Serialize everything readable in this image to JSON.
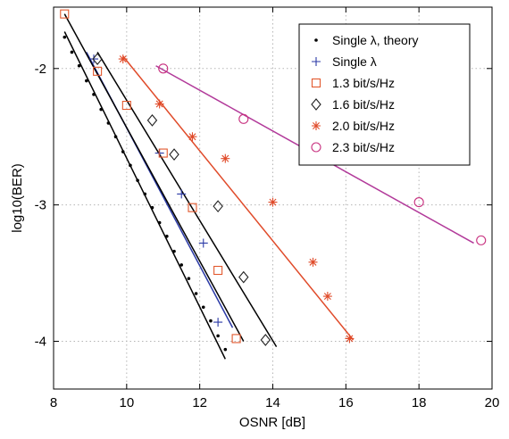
{
  "chart_data": {
    "type": "scatter",
    "title": "",
    "xlabel": "OSNR [dB]",
    "ylabel": "log10(BER)",
    "xlim": [
      8,
      20
    ],
    "ylim": [
      -4.35,
      -1.55
    ],
    "xticks": [
      8,
      10,
      12,
      14,
      16,
      18,
      20
    ],
    "yticks": [
      -2,
      -3,
      -4
    ],
    "xtick_labels": [
      "8",
      "10",
      "12",
      "14",
      "16",
      "18",
      "20"
    ],
    "ytick_labels": [
      "-2",
      "-3",
      "-4"
    ],
    "grid": true,
    "legend_position": "top-right",
    "series": [
      {
        "name": "Single λ, theory",
        "marker": "dot",
        "color": "#000000",
        "line_color": "#000000",
        "points": [
          [
            8.3,
            -1.77
          ],
          [
            8.5,
            -1.88
          ],
          [
            8.7,
            -1.98
          ],
          [
            8.9,
            -2.09
          ],
          [
            9.1,
            -2.19
          ],
          [
            9.3,
            -2.3
          ],
          [
            9.5,
            -2.4
          ],
          [
            9.7,
            -2.5
          ],
          [
            9.9,
            -2.61
          ],
          [
            10.1,
            -2.71
          ],
          [
            10.3,
            -2.82
          ],
          [
            10.5,
            -2.92
          ],
          [
            10.7,
            -3.02
          ],
          [
            10.9,
            -3.13
          ],
          [
            11.1,
            -3.23
          ],
          [
            11.3,
            -3.34
          ],
          [
            11.5,
            -3.44
          ],
          [
            11.7,
            -3.54
          ],
          [
            11.9,
            -3.65
          ],
          [
            12.1,
            -3.75
          ],
          [
            12.3,
            -3.85
          ],
          [
            12.5,
            -3.96
          ],
          [
            12.7,
            -4.06
          ]
        ],
        "fit": [
          [
            8.3,
            -1.73
          ],
          [
            12.7,
            -4.13
          ]
        ]
      },
      {
        "name": "Single λ",
        "marker": "plus",
        "color": "#2b3aa6",
        "line_color": "#2b3aa6",
        "points": [
          [
            9.1,
            -1.93
          ],
          [
            10.9,
            -2.62
          ],
          [
            11.5,
            -2.92
          ],
          [
            12.1,
            -3.28
          ],
          [
            12.5,
            -3.86
          ]
        ],
        "fit": [
          [
            8.9,
            -1.88
          ],
          [
            12.9,
            -3.9
          ]
        ]
      },
      {
        "name": "1.3 bit/s/Hz",
        "marker": "square",
        "color": "#e2592e",
        "line_color": "#000000",
        "points": [
          [
            8.3,
            -1.6
          ],
          [
            9.2,
            -2.02
          ],
          [
            10.0,
            -2.27
          ],
          [
            11.0,
            -2.62
          ],
          [
            11.8,
            -3.02
          ],
          [
            12.5,
            -3.48
          ],
          [
            13.0,
            -3.98
          ]
        ],
        "fit": [
          [
            8.3,
            -1.6
          ],
          [
            13.2,
            -4.0
          ]
        ]
      },
      {
        "name": "1.6 bit/s/Hz",
        "marker": "diamond",
        "color": "#222222",
        "line_color": "#000000",
        "points": [
          [
            9.2,
            -1.93
          ],
          [
            10.7,
            -2.38
          ],
          [
            11.3,
            -2.63
          ],
          [
            12.5,
            -3.01
          ],
          [
            13.2,
            -3.53
          ],
          [
            13.8,
            -3.99
          ]
        ],
        "fit": [
          [
            9.2,
            -1.88
          ],
          [
            14.1,
            -4.04
          ]
        ]
      },
      {
        "name": "2.0 bit/s/Hz",
        "marker": "asterisk",
        "color": "#e04b2a",
        "line_color": "#e04b2a",
        "points": [
          [
            9.9,
            -1.93
          ],
          [
            10.9,
            -2.26
          ],
          [
            11.8,
            -2.5
          ],
          [
            12.7,
            -2.66
          ],
          [
            14.0,
            -2.98
          ],
          [
            15.1,
            -3.42
          ],
          [
            15.5,
            -3.67
          ],
          [
            16.1,
            -3.98
          ]
        ],
        "fit": [
          [
            9.9,
            -1.91
          ],
          [
            16.2,
            -3.99
          ]
        ]
      },
      {
        "name": "2.3 bit/s/Hz",
        "marker": "circle",
        "color": "#c8307f",
        "line_color": "#b23a9a",
        "points": [
          [
            11.0,
            -2.0
          ],
          [
            13.2,
            -2.37
          ],
          [
            15.2,
            -2.67
          ],
          [
            18.0,
            -2.98
          ],
          [
            19.7,
            -3.26
          ]
        ],
        "fit": [
          [
            10.8,
            -1.98
          ],
          [
            19.5,
            -3.28
          ]
        ]
      }
    ]
  }
}
